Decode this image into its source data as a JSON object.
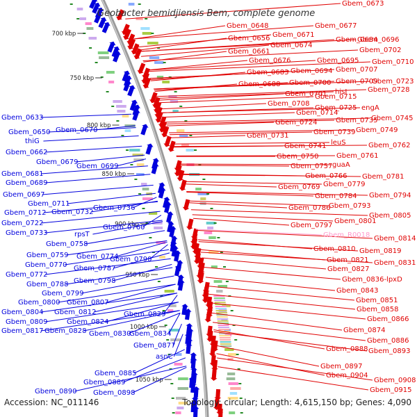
{
  "title": "Geobacter bemidjiensis Bem, complete genome",
  "accession": "Accession: NC_011146",
  "stats": "Topology: circular; Length: 4,615,150 bp; Genes: 4,090",
  "colors": {
    "forward": "#e00000",
    "reverse": "#0000dd",
    "rna": "#ff99cc",
    "backbone": "#9a9a9a",
    "tick": "#228822"
  },
  "kbp_labels": [
    "700 kbp",
    "750 kbp",
    "800 kbp",
    "850 kbp",
    "900 kbp",
    "950 kbp",
    "1000 kbp",
    "1050 kbp"
  ],
  "forward_labels": [
    "Gbem_0673",
    "Gbem_0648",
    "Gbem_0677",
    "Gbem_0671",
    "Gbem_0656",
    "Gbem_0684",
    "Gbem_0696",
    "Gbem_0674",
    "Gbem_0661",
    "Gbem_0702",
    "Gbem_0676",
    "Gbem_0695",
    "Gbem_0710",
    "Gbem_0694",
    "Gbem_0707",
    "Gbem_0683",
    "Gbem_0700",
    "Gbem_0709",
    "Gbem_0723",
    "Gbem_0688",
    "hisI",
    "Gbem_0728",
    "Gbem_0701",
    "Gbem_0715",
    "Gbem_0725",
    "engA",
    "Gbem_0708",
    "Gbem_0714",
    "Gbem_0745",
    "Gbem_0735",
    "Gbem_0724",
    "Gbem_0749",
    "Gbem_0739",
    "Gbem_0731",
    "leuS",
    "Gbem_0762",
    "Gbem_0741",
    "Gbem_0761",
    "Gbem_0750",
    "guaA",
    "Gbem_0757",
    "Gbem_0766",
    "Gbem_0781",
    "Gbem_0779",
    "Gbem_0769",
    "Gbem_0794",
    "Gbem_0784",
    "Gbem_0793",
    "Gbem_0786",
    "Gbem_0805",
    "Gbem_0801",
    "Gbem_0797",
    "Gbem_0814",
    "Gbem_0810",
    "Gbem_0819",
    "Gbem_0831",
    "Gbem_0821",
    "Gbem_0827",
    "Gbem_0836-lpxD",
    "Gbem_0843",
    "Gbem_0851",
    "Gbem_0858",
    "Gbem_0866",
    "Gbem_0874",
    "Gbem_0886",
    "Gbem_0888",
    "Gbem_0893",
    "Gbem_0897",
    "Gbem_0904",
    "Gbem_0908",
    "Gbem_0915"
  ],
  "rna_label": "Gbem_R0018",
  "reverse_labels": [
    "Gbem_0633",
    "Gbem_0650",
    "Gbem_0670",
    "thiG",
    "Gbem_0662",
    "Gbem_0679",
    "Gbem_0699",
    "Gbem_0681",
    "Gbem_0689",
    "Gbem_0697",
    "Gbem_0711",
    "Gbem_0712",
    "Gbem_0732",
    "Gbem_0736",
    "Gbem_0722",
    "Gbem_0733",
    "Gbem_0760",
    "rpsT",
    "Gbem_0758",
    "Gbem_0759",
    "Gbem_0774",
    "Gbem_0790",
    "Gbem_0770",
    "Gbem_0787",
    "Gbem_0772",
    "Gbem_0788",
    "Gbem_0798",
    "Gbem_0799",
    "Gbem_0800",
    "Gbem_0807",
    "Gbem_0804",
    "Gbem_0812",
    "Gbem_0829",
    "Gbem_0809",
    "Gbem_0824",
    "Gbem_0817",
    "Gbem_0828",
    "Gbem_0830",
    "Gbem_0834",
    "Gbem_0877",
    "asnC",
    "Gbem_0885",
    "Gbem_0889",
    "Gbem_0890",
    "Gbem_0898"
  ]
}
